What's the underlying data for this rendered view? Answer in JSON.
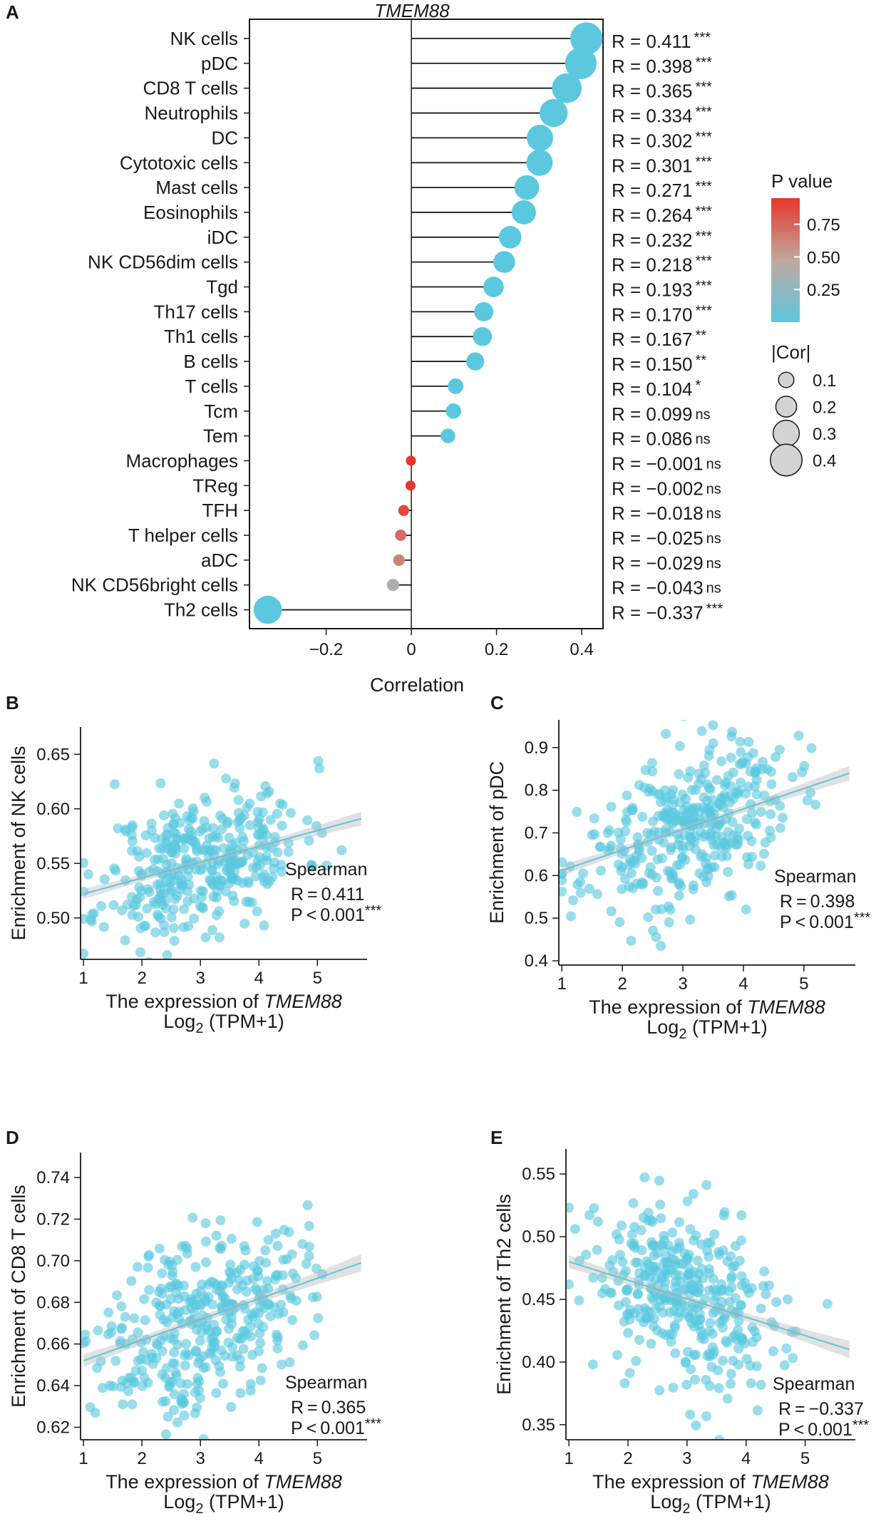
{
  "chart_data": [
    {
      "type": "lollipop",
      "panel": "A",
      "title": "TMEM88",
      "xlabel": "Correlation",
      "xlim": [
        -0.38,
        0.45
      ],
      "xticks": [
        "−0.2",
        "0",
        "0.2",
        "0.4"
      ],
      "xtick_values": [
        -0.2,
        0,
        0.2,
        0.4
      ],
      "categories": [
        "NK cells",
        "pDC",
        "CD8 T cells",
        "Neutrophils",
        "DC",
        "Cytotoxic cells",
        "Mast cells",
        "Eosinophils",
        "iDC",
        "NK CD56dim cells",
        "Tgd",
        "Th17 cells",
        "Th1 cells",
        "B cells",
        "T cells",
        "Tcm",
        "Tem",
        "Macrophages",
        "TReg",
        "TFH",
        "T helper cells",
        "aDC",
        "NK CD56bright cells",
        "Th2 cells"
      ],
      "values": [
        0.411,
        0.398,
        0.365,
        0.334,
        0.302,
        0.301,
        0.271,
        0.264,
        0.232,
        0.218,
        0.193,
        0.17,
        0.167,
        0.15,
        0.104,
        0.099,
        0.086,
        -0.001,
        -0.002,
        -0.018,
        -0.025,
        -0.029,
        -0.043,
        -0.337
      ],
      "r_labels": [
        "R = 0.411",
        "R = 0.398",
        "R = 0.365",
        "R = 0.334",
        "R = 0.302",
        "R = 0.301",
        "R = 0.271",
        "R = 0.264",
        "R = 0.232",
        "R = 0.218",
        "R = 0.193",
        "R = 0.170",
        "R = 0.167",
        "R = 0.150",
        "R = 0.104",
        "R = 0.099",
        "R = 0.086",
        "R = −0.001",
        "R = −0.002",
        "R = −0.018",
        "R = −0.025",
        "R = −0.029",
        "R = −0.043",
        "R = −0.337"
      ],
      "significance": [
        "***",
        "***",
        "***",
        "***",
        "***",
        "***",
        "***",
        "***",
        "***",
        "***",
        "***",
        "***",
        "**",
        "**",
        "*",
        "ns",
        "ns",
        "ns",
        "ns",
        "ns",
        "ns",
        "ns",
        "ns",
        "***"
      ],
      "pvalues": [
        0,
        0,
        0,
        0,
        0,
        0,
        0,
        0,
        0,
        0,
        0,
        0,
        0.002,
        0.004,
        0.04,
        0.06,
        0.1,
        0.98,
        0.97,
        0.75,
        0.66,
        0.6,
        0.45,
        0
      ],
      "legend_p": {
        "title": "P value",
        "ticks": [
          "0.75",
          "0.50",
          "0.25"
        ],
        "tick_values": [
          0.75,
          0.5,
          0.25
        ],
        "color_low": "#5bc8df",
        "color_mid": "#c0a8a0",
        "color_high": "#e8362a"
      },
      "legend_size": {
        "title": "|Cor|",
        "ticks": [
          "0.1",
          "0.2",
          "0.3",
          "0.4"
        ],
        "tick_values": [
          0.1,
          0.2,
          0.3,
          0.4
        ]
      }
    },
    {
      "type": "scatter",
      "panel": "B",
      "ylabel": "Enrichment of NK cells",
      "xlabel_pre": "The expression of ",
      "xlabel_gene": "TMEM88",
      "xlabel2_pre": "Log",
      "xlabel2_sub": "2",
      "xlabel2_post": " (TPM+1)",
      "xlim": [
        0.95,
        5.85
      ],
      "ylim": [
        0.462,
        0.675
      ],
      "xticks": [
        1,
        2,
        3,
        4,
        5
      ],
      "yticks": [
        "0.50",
        "0.55",
        "0.60",
        "0.65"
      ],
      "ytick_values": [
        0.5,
        0.55,
        0.6,
        0.65
      ],
      "fit": {
        "x": [
          1.0,
          5.75
        ],
        "y": [
          0.522,
          0.591
        ]
      },
      "method": "Spearman",
      "r_text": "R = 0.411",
      "p_text": "P < 0.001",
      "p_sig": "***",
      "n_points": 360,
      "seed": 11,
      "point_color": "#5bc8df"
    },
    {
      "type": "scatter",
      "panel": "C",
      "ylabel": "Enrichment of pDC",
      "xlabel_pre": "The expression of ",
      "xlabel_gene": "TMEM88",
      "xlabel2_pre": "Log",
      "xlabel2_sub": "2",
      "xlabel2_post": " (TPM+1)",
      "xlim": [
        0.95,
        5.85
      ],
      "ylim": [
        0.39,
        0.965
      ],
      "xticks": [
        1,
        2,
        3,
        4,
        5
      ],
      "yticks": [
        "0.4",
        "0.5",
        "0.6",
        "0.7",
        "0.8",
        "0.9"
      ],
      "ytick_values": [
        0.4,
        0.5,
        0.6,
        0.7,
        0.8,
        0.9
      ],
      "fit": {
        "x": [
          1.0,
          5.75
        ],
        "y": [
          0.612,
          0.84
        ]
      },
      "method": "Spearman",
      "r_text": "R = 0.398",
      "p_text": "P < 0.001",
      "p_sig": "***",
      "n_points": 360,
      "seed": 23,
      "point_color": "#5bc8df"
    },
    {
      "type": "scatter",
      "panel": "D",
      "ylabel": "Enrichment of CD8 T cells",
      "xlabel_pre": "The expression of ",
      "xlabel_gene": "TMEM88",
      "xlabel2_pre": "Log",
      "xlabel2_sub": "2",
      "xlabel2_post": " (TPM+1)",
      "xlim": [
        0.95,
        5.85
      ],
      "ylim": [
        0.614,
        0.752
      ],
      "xticks": [
        1,
        2,
        3,
        4,
        5
      ],
      "yticks": [
        "0.62",
        "0.64",
        "0.66",
        "0.68",
        "0.70",
        "0.72",
        "0.74"
      ],
      "ytick_values": [
        0.62,
        0.64,
        0.66,
        0.68,
        0.7,
        0.72,
        0.74
      ],
      "fit": {
        "x": [
          1.0,
          5.75
        ],
        "y": [
          0.652,
          0.699
        ]
      },
      "method": "Spearman",
      "r_text": "R = 0.365",
      "p_text": "P < 0.001",
      "p_sig": "***",
      "n_points": 360,
      "seed": 37,
      "point_color": "#5bc8df"
    },
    {
      "type": "scatter",
      "panel": "E",
      "ylabel": "Enrichment of Th2 cells",
      "xlabel_pre": "The expression of ",
      "xlabel_gene": "TMEM88",
      "xlabel2_pre": "Log",
      "xlabel2_sub": "2",
      "xlabel2_post": " (TPM+1)",
      "xlim": [
        0.95,
        5.85
      ],
      "ylim": [
        0.338,
        0.57
      ],
      "xticks": [
        1,
        2,
        3,
        4,
        5
      ],
      "yticks": [
        "0.35",
        "0.40",
        "0.45",
        "0.50",
        "0.55"
      ],
      "ytick_values": [
        0.35,
        0.4,
        0.45,
        0.5,
        0.55
      ],
      "fit": {
        "x": [
          1.0,
          5.75
        ],
        "y": [
          0.48,
          0.41
        ]
      },
      "method": "Spearman",
      "r_text": "R = −0.337",
      "p_text": "P < 0.001",
      "p_sig": "***",
      "n_points": 360,
      "seed": 53,
      "point_color": "#5bc8df"
    }
  ]
}
